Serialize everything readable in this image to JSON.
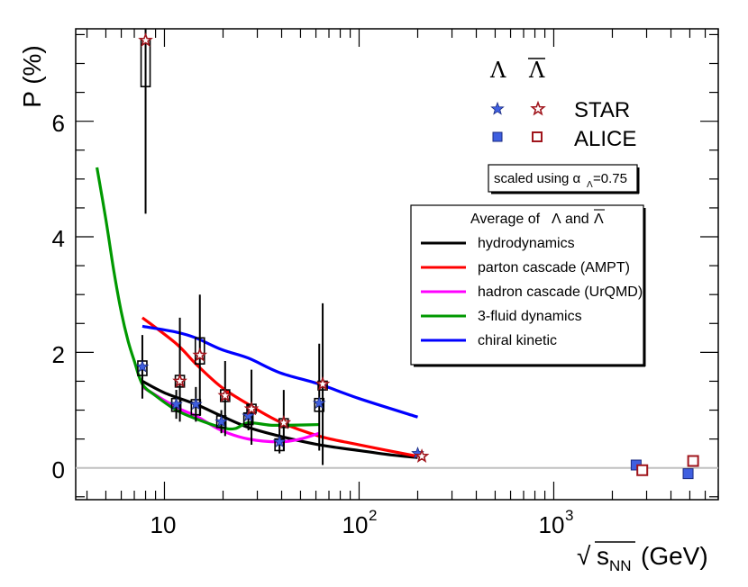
{
  "chart_data": {
    "type": "scatter",
    "title": "",
    "xlabel_root": "√",
    "xlabel_s": "s",
    "xlabel_sub": "NN",
    "xlabel_unit": "(GeV)",
    "ylabel": "P (%)",
    "xscale": "log",
    "xlim": [
      3.5,
      7000
    ],
    "ylim": [
      -0.55,
      7.6
    ],
    "x_tick_labels": [
      {
        "value": 10,
        "label": "10"
      },
      {
        "value": 100,
        "label": "10",
        "exp": "2"
      },
      {
        "value": 1000,
        "label": "10",
        "exp": "3"
      }
    ],
    "y_tick_labels": [
      {
        "value": 0,
        "label": "0"
      },
      {
        "value": 2,
        "label": "2"
      },
      {
        "value": 4,
        "label": "4"
      },
      {
        "value": 6,
        "label": "6"
      }
    ],
    "reference_line": 0,
    "header_lambda": "Λ",
    "header_antilambda": "Λ",
    "legend_markers": [
      {
        "label": "STAR",
        "marker": "star"
      },
      {
        "label": "ALICE",
        "marker": "square"
      }
    ],
    "scale_note_prefix": "scaled using α",
    "scale_note_sub": "Λ",
    "scale_note_suffix": "=0.75",
    "models_legend_title_prefix": "Average of",
    "models_legend_title_l": "Λ",
    "models_legend_title_and": "and",
    "models_legend_title_al": "Λ",
    "colors": {
      "lambda_fill": "#3f5fe0",
      "antilambda_fill": "#ffffff",
      "antilambda_edge": "#a0151c",
      "syst": "#000000",
      "zero_line": "#c0c0c0"
    },
    "series": [
      {
        "name": "STAR Λ",
        "marker": "star",
        "color": "#3f5fe0",
        "points": [
          {
            "x": 7.7,
            "y": 1.75,
            "ylo": 1.2,
            "yhi": 2.3
          },
          {
            "x": 11.5,
            "y": 1.1,
            "ylo": 0.85,
            "yhi": 1.35
          },
          {
            "x": 14.5,
            "y": 1.1,
            "ylo": 0.8,
            "yhi": 1.4
          },
          {
            "x": 19.6,
            "y": 0.8,
            "ylo": 0.6,
            "yhi": 1.0
          },
          {
            "x": 27,
            "y": 0.9,
            "ylo": 0.65,
            "yhi": 1.1
          },
          {
            "x": 39,
            "y": 0.45,
            "ylo": 0.25,
            "yhi": 0.7
          },
          {
            "x": 62.4,
            "y": 1.12,
            "ylo": 0.3,
            "yhi": 2.15
          },
          {
            "x": 200,
            "y": 0.25,
            "ylo": 0.22,
            "yhi": 0.28
          }
        ]
      },
      {
        "name": "STAR anti-Λ",
        "marker": "star",
        "color": "#a0151c",
        "points": [
          {
            "x": 8.0,
            "y": 7.4,
            "ylo": 4.4,
            "yhi": 7.6
          },
          {
            "x": 12.0,
            "y": 1.5,
            "ylo": 0.8,
            "yhi": 2.6
          },
          {
            "x": 15.2,
            "y": 1.95,
            "ylo": 0.9,
            "yhi": 3.0
          },
          {
            "x": 20.5,
            "y": 1.25,
            "ylo": 0.55,
            "yhi": 1.85
          },
          {
            "x": 28,
            "y": 1.02,
            "ylo": 0.4,
            "yhi": 1.7
          },
          {
            "x": 41,
            "y": 0.78,
            "ylo": 0.3,
            "yhi": 1.35
          },
          {
            "x": 65,
            "y": 1.45,
            "ylo": 0.05,
            "yhi": 2.85
          },
          {
            "x": 210,
            "y": 0.2,
            "ylo": 0.16,
            "yhi": 0.25
          }
        ]
      },
      {
        "name": "ALICE Λ",
        "marker": "square",
        "color": "#3f5fe0",
        "points": [
          {
            "x": 2650,
            "y": 0.05
          },
          {
            "x": 4900,
            "y": -0.1
          }
        ]
      },
      {
        "name": "ALICE anti-Λ",
        "marker": "square",
        "color": "#a0151c",
        "points": [
          {
            "x": 2850,
            "y": -0.04
          },
          {
            "x": 5200,
            "y": 0.12
          }
        ]
      }
    ],
    "systematic_boxes": [
      {
        "x": 7.7,
        "lo": 1.6,
        "hi": 1.85
      },
      {
        "x": 8.0,
        "lo": 6.6,
        "hi": 7.4
      },
      {
        "x": 11.5,
        "lo": 0.98,
        "hi": 1.2
      },
      {
        "x": 12.0,
        "lo": 1.4,
        "hi": 1.6
      },
      {
        "x": 14.5,
        "lo": 0.92,
        "hi": 1.18
      },
      {
        "x": 15.2,
        "lo": 1.8,
        "hi": 2.25
      },
      {
        "x": 19.6,
        "lo": 0.7,
        "hi": 0.9
      },
      {
        "x": 20.5,
        "lo": 1.15,
        "hi": 1.35
      },
      {
        "x": 27,
        "lo": 0.75,
        "hi": 0.95
      },
      {
        "x": 28,
        "lo": 0.95,
        "hi": 1.1
      },
      {
        "x": 39,
        "lo": 0.3,
        "hi": 0.5
      },
      {
        "x": 41,
        "lo": 0.7,
        "hi": 0.85
      },
      {
        "x": 62.4,
        "lo": 0.98,
        "hi": 1.2
      },
      {
        "x": 65,
        "lo": 1.35,
        "hi": 1.5
      }
    ],
    "models": [
      {
        "name": "hydrodynamics",
        "color": "#000000",
        "x": [
          7.7,
          10,
          14.5,
          19.6,
          27,
          39,
          62.4,
          100,
          150,
          200
        ],
        "y": [
          1.5,
          1.3,
          1.1,
          0.9,
          0.7,
          0.55,
          0.4,
          0.3,
          0.22,
          0.18
        ]
      },
      {
        "name": "parton cascade (AMPT)",
        "color": "#ff0000",
        "x": [
          7.7,
          11.5,
          14.5,
          19.6,
          27,
          39,
          62.4,
          100,
          200
        ],
        "y": [
          2.6,
          2.15,
          1.8,
          1.4,
          1.1,
          0.8,
          0.55,
          0.4,
          0.2
        ]
      },
      {
        "name": "hadron cascade (UrQMD)",
        "color": "#ff00ff",
        "x": [
          7.7,
          11.5,
          14.5,
          19.6,
          27,
          39,
          50,
          62.4
        ],
        "y": [
          1.4,
          1.05,
          0.9,
          0.65,
          0.5,
          0.45,
          0.5,
          0.6
        ]
      },
      {
        "name": "3-fluid dynamics",
        "color": "#009900",
        "x": [
          4.5,
          5.0,
          5.5,
          6.0,
          6.5,
          7.0,
          7.7,
          9.0,
          11.5,
          14.5,
          19.6,
          23,
          27,
          35,
          45,
          62.4
        ],
        "y": [
          5.2,
          4.3,
          3.4,
          2.7,
          2.2,
          1.85,
          1.45,
          1.25,
          1.0,
          0.85,
          0.7,
          0.68,
          0.78,
          0.74,
          0.74,
          0.75
        ]
      },
      {
        "name": "chiral kinetic",
        "color": "#0000ff",
        "x": [
          7.7,
          11.5,
          14.5,
          19.6,
          27,
          39,
          62.4,
          100,
          200
        ],
        "y": [
          2.45,
          2.35,
          2.25,
          2.05,
          1.9,
          1.65,
          1.45,
          1.2,
          0.88
        ]
      }
    ]
  }
}
